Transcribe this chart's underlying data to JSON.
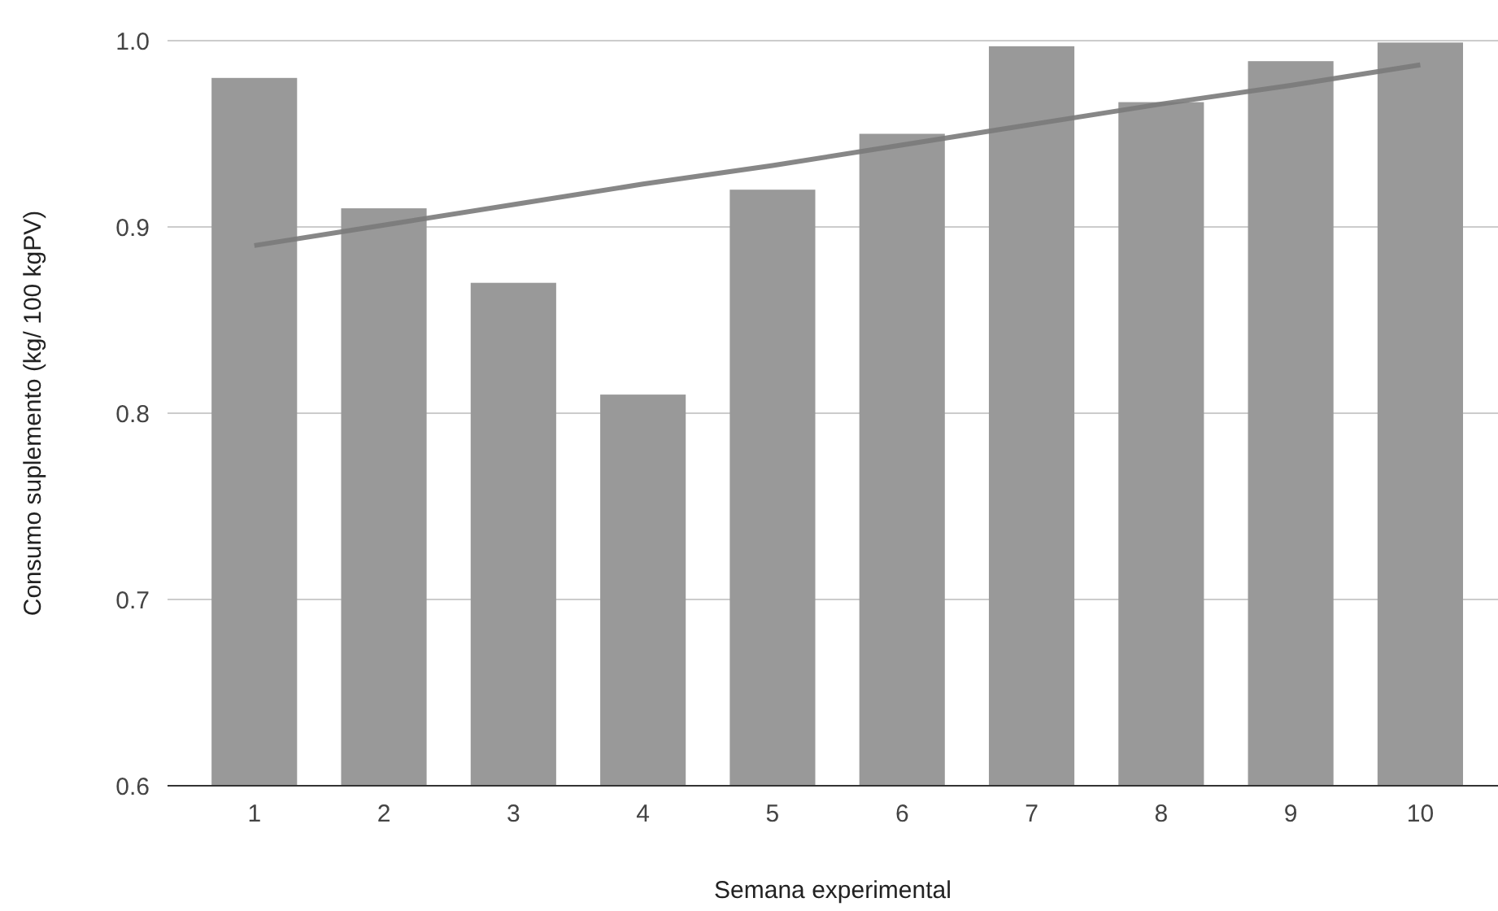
{
  "chart_data": {
    "type": "bar",
    "xlabel": "Semana experimental",
    "ylabel": "Consumo suplemento (kg/ 100 kgPV)",
    "categories": [
      "1",
      "2",
      "3",
      "4",
      "5",
      "6",
      "7",
      "8",
      "9",
      "10"
    ],
    "series": [
      {
        "color": "#999999",
        "values": [
          0.98,
          0.91,
          0.87,
          0.81,
          0.92,
          0.95,
          0.997,
          0.967,
          0.989,
          0.999
        ]
      },
      {
        "type": "line",
        "color": "#7a7a7a",
        "values": [
          0.89,
          0.901,
          0.912,
          0.923,
          0.933,
          0.944,
          0.955,
          0.966,
          0.976,
          0.987
        ]
      }
    ],
    "ylim": [
      0.6,
      1.0
    ],
    "yticks": [
      {
        "value": 0.6,
        "label": "0.6"
      },
      {
        "value": 0.7,
        "label": "0.7"
      },
      {
        "value": 0.8,
        "label": "0.8"
      },
      {
        "value": 0.9,
        "label": "0.9"
      },
      {
        "value": 1.0,
        "label": "1.0"
      }
    ],
    "grid": "y"
  }
}
